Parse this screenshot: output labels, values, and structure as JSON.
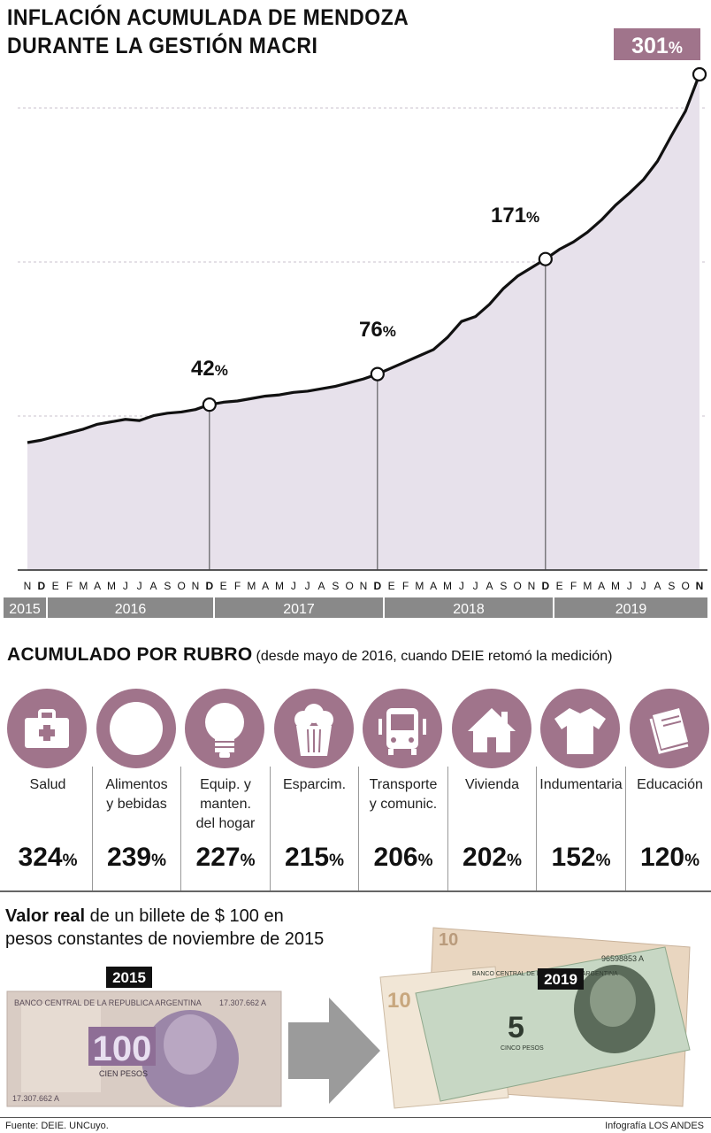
{
  "title": {
    "line1": "INFLACIÓN ACUMULADA DE MENDOZA",
    "line2": "DURANTE LA GESTIÓN MACRI"
  },
  "chart_data": {
    "type": "area",
    "x": [
      "N",
      "D",
      "E",
      "F",
      "M",
      "A",
      "M",
      "J",
      "J",
      "A",
      "S",
      "O",
      "N",
      "D",
      "E",
      "F",
      "M",
      "A",
      "M",
      "J",
      "J",
      "A",
      "S",
      "O",
      "N",
      "D",
      "E",
      "F",
      "M",
      "A",
      "M",
      "J",
      "J",
      "A",
      "S",
      "O",
      "N",
      "D",
      "E",
      "F",
      "M",
      "A",
      "M",
      "J",
      "J",
      "A",
      "S",
      "O",
      "N"
    ],
    "x_bold": [
      "D",
      "D",
      "D",
      "N"
    ],
    "years": [
      "2015",
      "2016",
      "2017",
      "2018",
      "2019"
    ],
    "values": [
      0,
      2,
      5,
      8,
      11,
      15,
      17,
      19,
      18,
      22,
      24,
      25,
      27,
      31,
      33,
      34,
      36,
      38,
      39,
      41,
      42,
      44,
      46,
      49,
      52,
      56,
      61,
      66,
      71,
      76,
      86,
      99,
      103,
      113,
      126,
      136,
      143,
      150,
      158,
      164,
      172,
      182,
      194,
      204,
      215,
      230,
      251,
      271,
      301
    ],
    "annotations": [
      {
        "label_value": "42",
        "unit": "%"
      },
      {
        "label_value": "76",
        "unit": "%"
      },
      {
        "label_value": "171",
        "unit": "%"
      },
      {
        "label_value": "301",
        "unit": "%"
      }
    ],
    "colors": {
      "fill": "#e7e1eb",
      "line": "#111111",
      "highlight": "#a0748b"
    },
    "grid": true
  },
  "rubro": {
    "heading": "ACUMULADO POR RUBRO",
    "subheading": "(desde mayo de 2016, cuando DEIE retomó la medición)",
    "unit": "%",
    "categories": [
      {
        "icon": "first-aid-kit-icon",
        "label_lines": [
          "Salud"
        ],
        "value": "324"
      },
      {
        "icon": "plate-icon",
        "label_lines": [
          "Alimentos",
          "y bebidas"
        ],
        "value": "239"
      },
      {
        "icon": "light-bulb-icon",
        "label_lines": [
          "Equip. y",
          "manten.",
          "del hogar"
        ],
        "value": "227"
      },
      {
        "icon": "popcorn-icon",
        "label_lines": [
          "Esparcim."
        ],
        "value": "215"
      },
      {
        "icon": "bus-icon",
        "label_lines": [
          "Transporte",
          "y comunic."
        ],
        "value": "206"
      },
      {
        "icon": "house-icon",
        "label_lines": [
          "Vivienda"
        ],
        "value": "202"
      },
      {
        "icon": "t-shirt-icon",
        "label_lines": [
          "Indumentaria"
        ],
        "value": "152"
      },
      {
        "icon": "book-icon",
        "label_lines": [
          "Educación"
        ],
        "value": "120"
      }
    ]
  },
  "valor": {
    "bold": "Valor real",
    "rest1": " de un billete de $ 100 en",
    "line2": "pesos constantes de noviembre de 2015",
    "year_before": "2015",
    "year_after": "2019",
    "bill_before": {
      "header": "BANCO CENTRAL DE LA REPUBLICA ARGENTINA",
      "serial": "17.307.662 A",
      "denomination": "100",
      "caption": "CIEN PESOS"
    },
    "bill_after": {
      "header": "BANCO CENTRAL DE LA REPUBLICA ARGENTINA",
      "denomination": "5",
      "back_denomination": "10",
      "serial": "96598853 A",
      "caption": "CINCO PESOS"
    }
  },
  "footer": {
    "source": "Fuente: DEIE. UNCuyo.",
    "credit": "Infografía LOS ANDES"
  }
}
